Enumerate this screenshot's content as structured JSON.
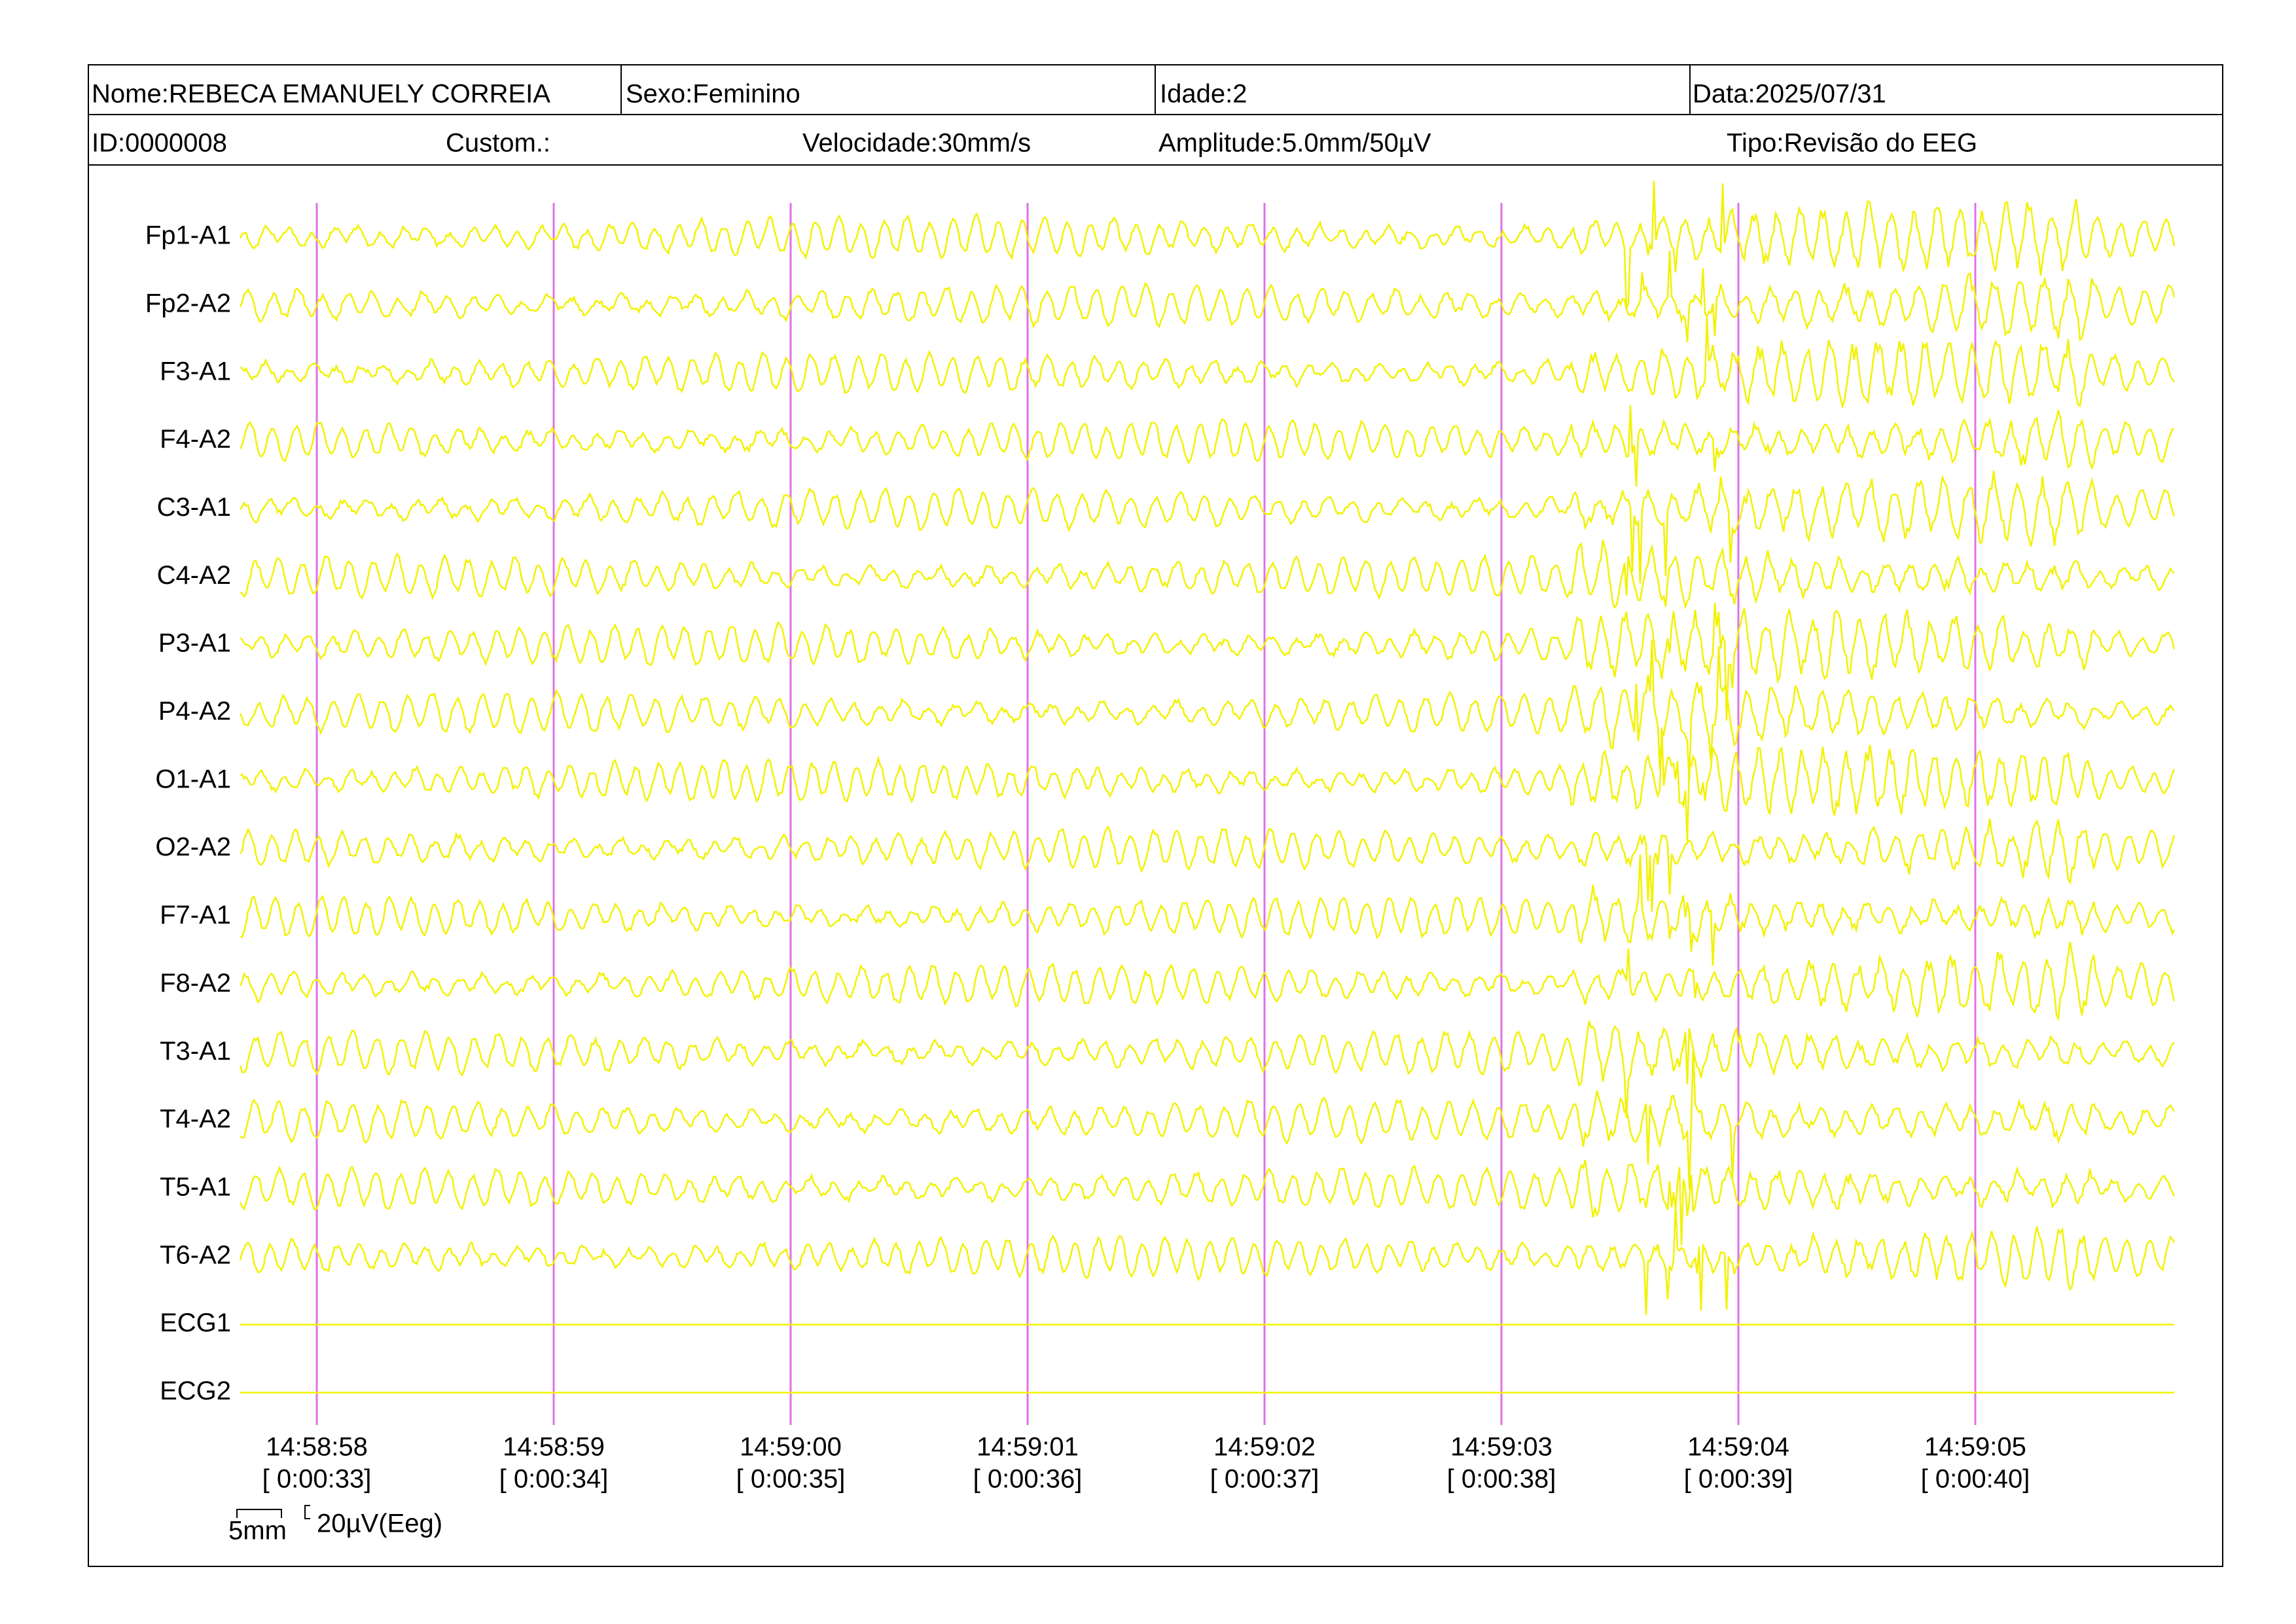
{
  "header": {
    "name": "Nome:REBECA EMANUELY CORREIA",
    "sex": "Sexo:Feminino",
    "age": "Idade:2",
    "date": "Data:2025/07/31",
    "id": "ID:0000008",
    "custom": "Custom.:",
    "speed": "Velocidade:30mm/s",
    "amplitude": "Amplitude:5.0mm/50µV",
    "type": "Tipo:Revisão do EEG"
  },
  "channels": [
    "Fp1-A1",
    "Fp2-A2",
    "F3-A1",
    "F4-A2",
    "C3-A1",
    "C4-A2",
    "P3-A1",
    "P4-A2",
    "O1-A1",
    "O2-A2",
    "F7-A1",
    "F8-A2",
    "T3-A1",
    "T4-A2",
    "T5-A1",
    "T6-A2",
    "ECG1",
    "ECG2"
  ],
  "timeline": [
    {
      "time": "14:58:58",
      "elapsed": "[ 0:00:33]"
    },
    {
      "time": "14:58:59",
      "elapsed": "[ 0:00:34]"
    },
    {
      "time": "14:59:00",
      "elapsed": "[ 0:00:35]"
    },
    {
      "time": "14:59:01",
      "elapsed": "[ 0:00:36]"
    },
    {
      "time": "14:59:02",
      "elapsed": "[ 0:00:37]"
    },
    {
      "time": "14:59:03",
      "elapsed": "[ 0:00:38]"
    },
    {
      "time": "14:59:04",
      "elapsed": "[ 0:00:39]"
    },
    {
      "time": "14:59:05",
      "elapsed": "[ 0:00:40]"
    }
  ],
  "scale": {
    "time": "5mm",
    "amplitude": "20µV(Eeg)"
  }
}
